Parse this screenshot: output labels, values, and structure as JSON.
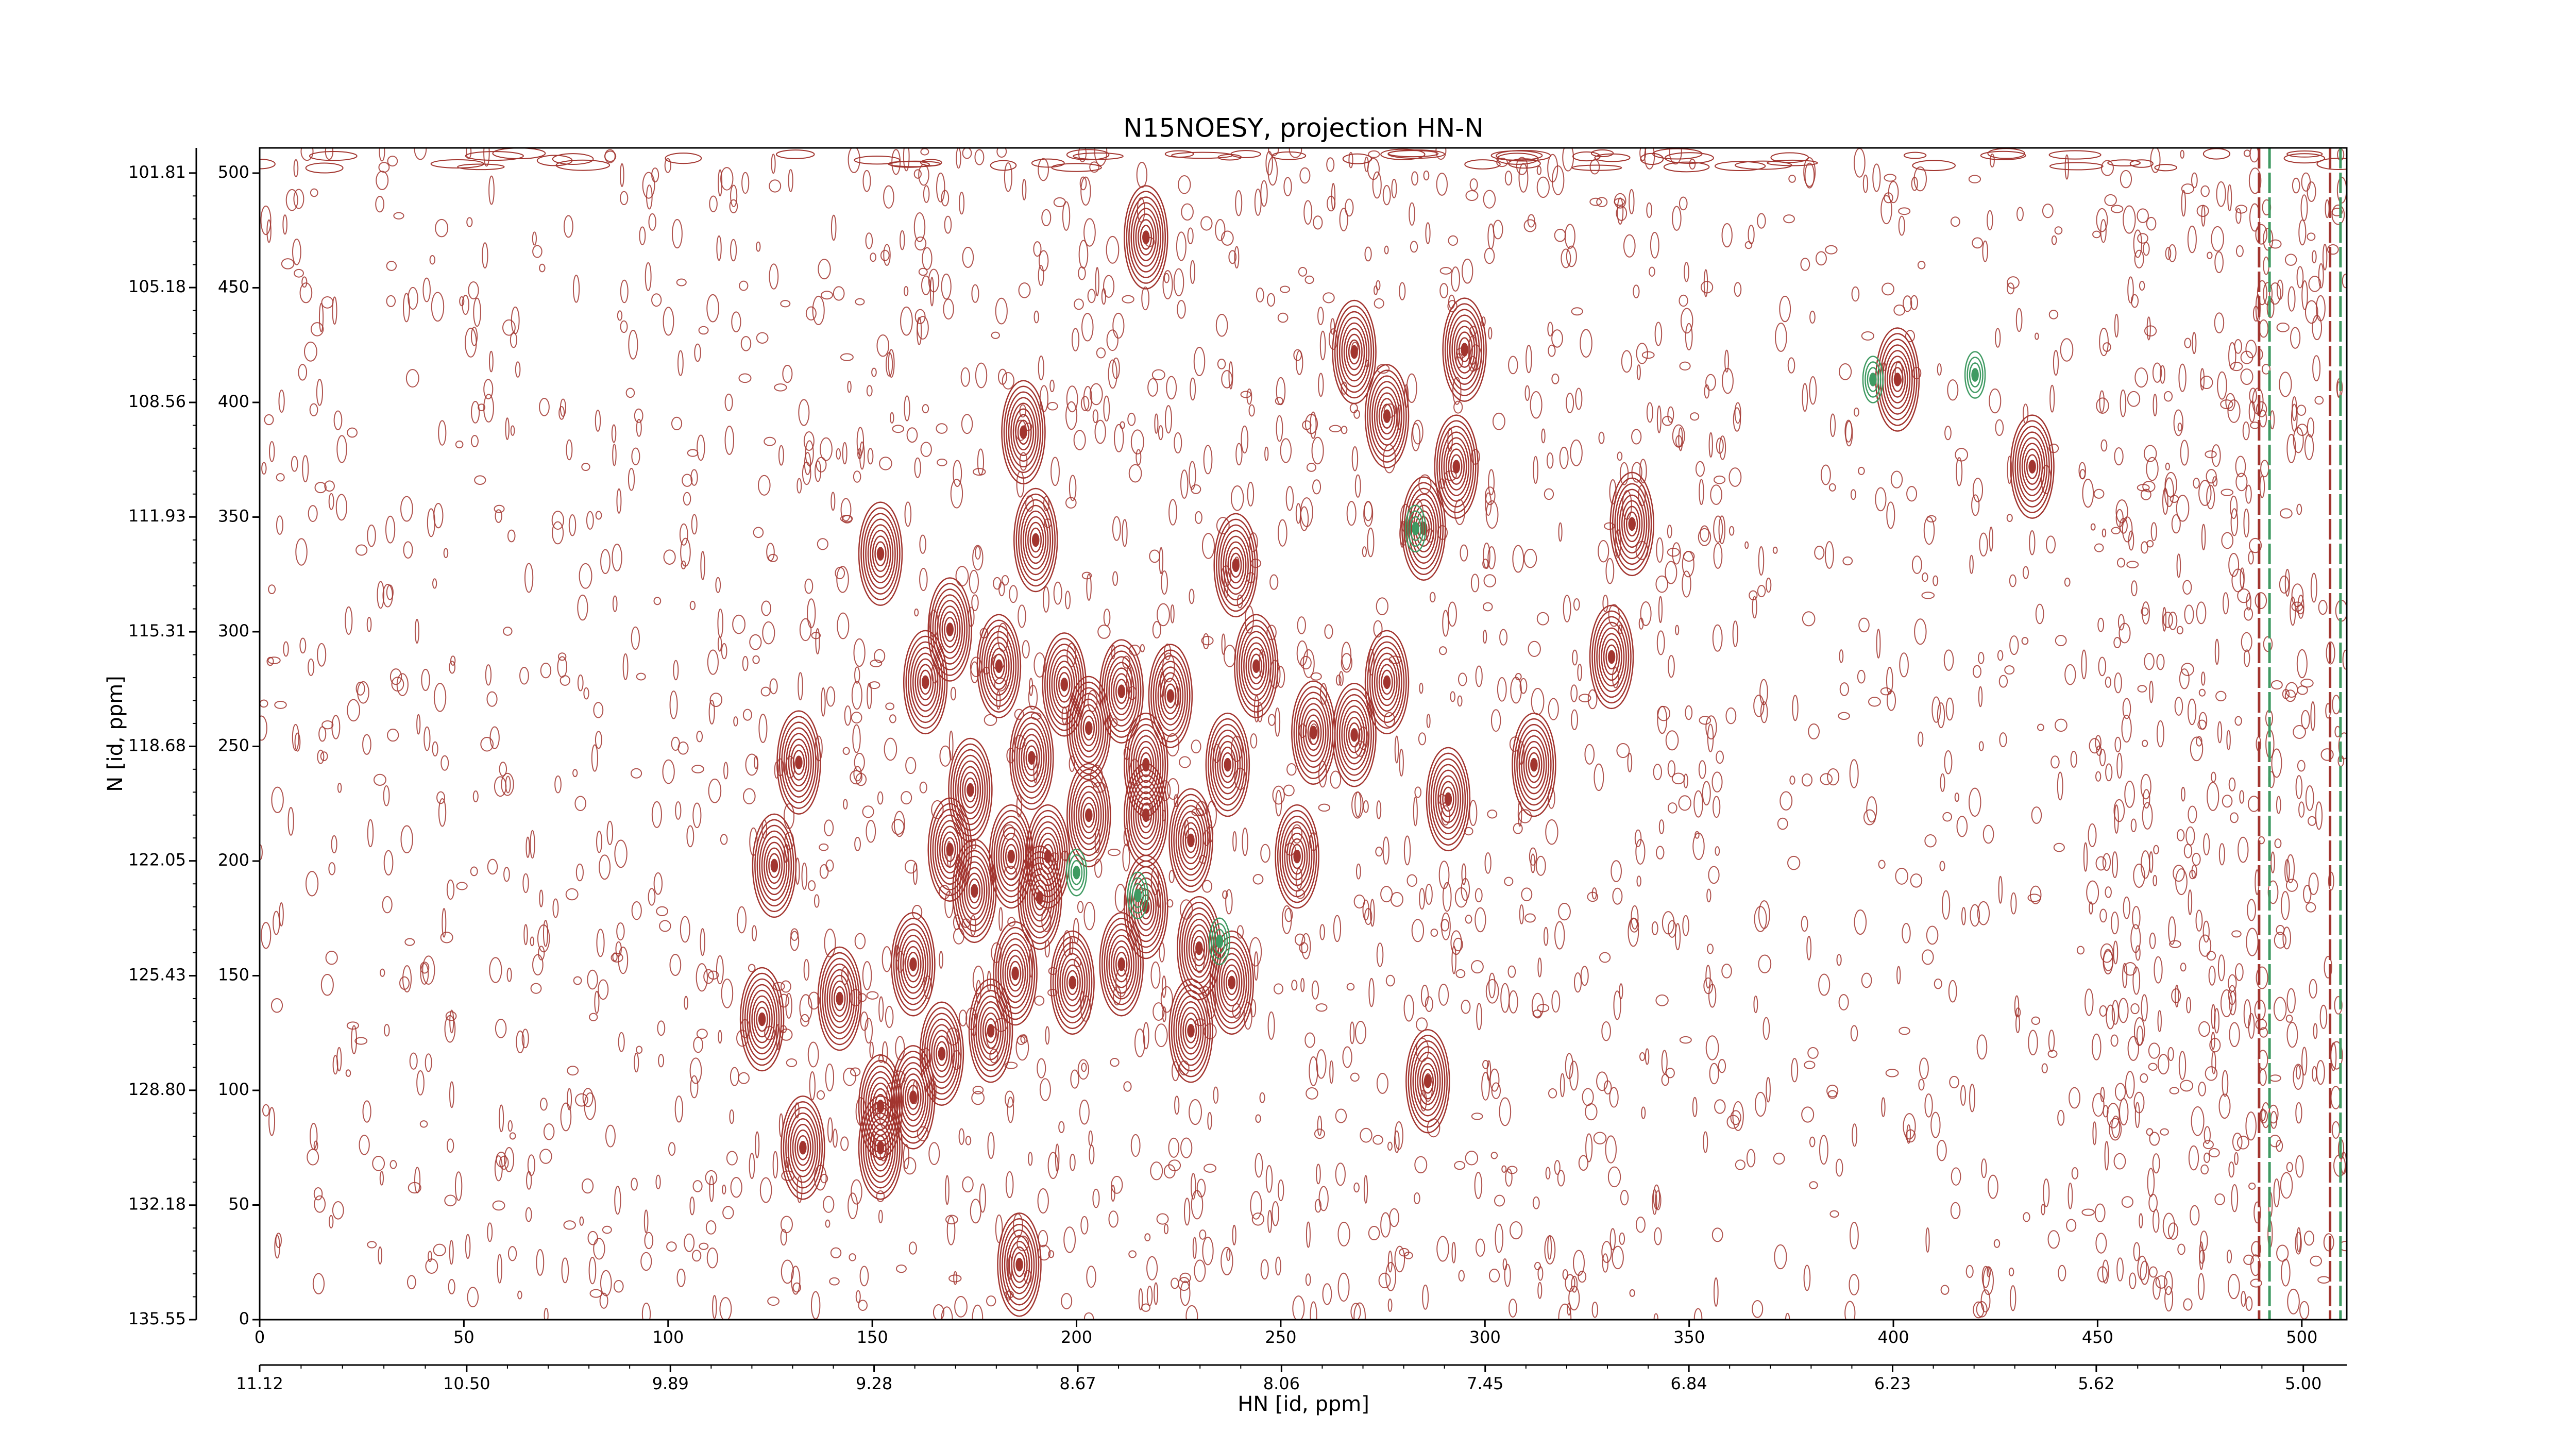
{
  "chart_data": {
    "type": "contour",
    "title": "N15NOESY, projection HN-N",
    "x_label": "HN [id, ppm]",
    "y_label": "N [id, ppm]",
    "xlim": [
      0,
      511
    ],
    "ylim": [
      0,
      511
    ],
    "xticks": [
      0,
      50,
      100,
      150,
      200,
      250,
      300,
      350,
      400,
      450,
      500
    ],
    "yticks": [
      0,
      50,
      100,
      150,
      200,
      250,
      300,
      350,
      400,
      450,
      500
    ],
    "x2lim": [
      11.12,
      4.87
    ],
    "x2ticks": [
      11.12,
      {
        "value": 10.5,
        "label": "10.50"
      },
      9.89,
      9.28,
      8.67,
      8.06,
      7.45,
      6.84,
      6.23,
      5.62,
      {
        "value": 5.0,
        "label": "5.00"
      }
    ],
    "y2lim": [
      135.55,
      101.07
    ],
    "y2ticks": [
      135.55,
      132.18,
      {
        "value": 128.8,
        "label": "128.80"
      },
      125.43,
      122.05,
      118.68,
      115.31,
      111.93,
      108.56,
      105.18,
      101.81
    ],
    "series": [
      {
        "color": "#a2352f",
        "x": [
          217,
          268,
          295,
          276,
          293,
          187,
          190,
          152,
          239,
          285,
          336,
          401,
          434,
          169,
          163,
          181,
          197,
          211,
          223,
          244,
          258,
          268,
          276,
          331,
          189,
          203,
          217,
          237,
          291,
          174,
          132,
          126,
          169,
          184,
          193,
          203,
          217,
          228,
          254,
          175,
          191,
          217,
          238,
          160,
          185,
          199,
          211,
          230,
          123,
          142,
          167,
          179,
          228,
          286,
          152,
          160,
          133,
          152,
          186,
          312
        ],
        "y": [
          472,
          422,
          423,
          394,
          372,
          387,
          340,
          334,
          329,
          345,
          347,
          410,
          372,
          301,
          278,
          285,
          277,
          274,
          272,
          285,
          256,
          255,
          278,
          289,
          245,
          258,
          242,
          242,
          227,
          231,
          243,
          198,
          205,
          202,
          202,
          220,
          220,
          209,
          202,
          187,
          184,
          180,
          147,
          155,
          151,
          147,
          155,
          162,
          131,
          140,
          116,
          126,
          126,
          104,
          93,
          97,
          75,
          75,
          24,
          242
        ]
      },
      {
        "color": "#3f9a62",
        "x": [
          283,
          200,
          215,
          235,
          395,
          420
        ],
        "y": [
          345,
          195,
          185,
          165,
          410,
          412
        ]
      }
    ]
  }
}
